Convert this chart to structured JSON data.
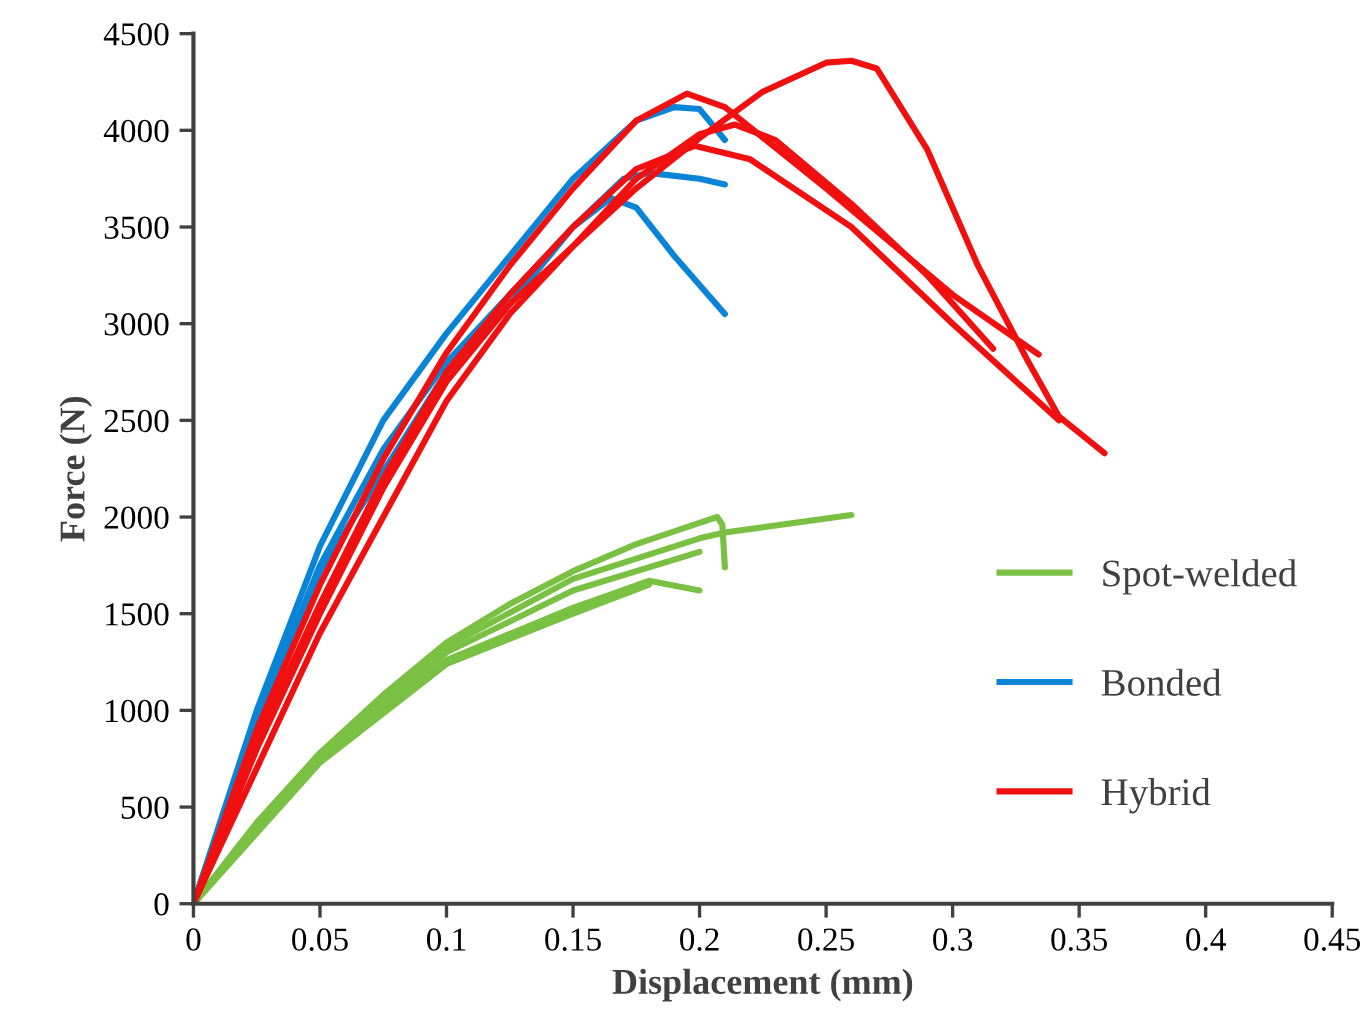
{
  "chart_data": {
    "type": "line",
    "xlabel": "Displacement (mm)",
    "ylabel": "Force (N)",
    "xlim": [
      0,
      0.45
    ],
    "xticks": [
      {
        "value": 0,
        "label": "0"
      },
      0.05,
      0.1,
      0.15,
      0.2,
      0.25,
      0.3,
      0.35,
      0.4,
      0.45
    ],
    "ylim": [
      0,
      4500
    ],
    "yticks": [
      0,
      500,
      1000,
      1500,
      2000,
      2500,
      3000,
      3500,
      4000,
      4500
    ],
    "grid": false,
    "legend": "right",
    "marker": "none",
    "line_style": "solid",
    "series": [
      {
        "name": "Spot-welded",
        "color": "#7ac143",
        "x": [
          0,
          0.025,
          0.05,
          0.075,
          0.1,
          0.125,
          0.15,
          0.175,
          0.2,
          0.207,
          0.209,
          0.21
        ],
        "values": [
          0,
          420,
          780,
          1080,
          1350,
          1550,
          1720,
          1860,
          1970,
          2000,
          1960,
          1740
        ]
      },
      {
        "color": "#7ac143",
        "x": [
          0,
          0.05,
          0.1,
          0.15,
          0.2,
          0.21,
          0.26
        ],
        "values": [
          0,
          770,
          1330,
          1680,
          1890,
          1920,
          2010
        ]
      },
      {
        "color": "#7ac143",
        "x": [
          0,
          0.05,
          0.1,
          0.15,
          0.2
        ],
        "values": [
          0,
          760,
          1300,
          1620,
          1820
        ]
      },
      {
        "color": "#7ac143",
        "x": [
          0,
          0.05,
          0.1,
          0.15,
          0.18,
          0.2
        ],
        "values": [
          0,
          740,
          1260,
          1530,
          1670,
          1620
        ]
      },
      {
        "color": "#7ac143",
        "x": [
          0,
          0.05,
          0.1,
          0.15,
          0.18
        ],
        "values": [
          0,
          730,
          1240,
          1500,
          1650
        ]
      },
      {
        "name": "Bonded",
        "color": "#0a84d6",
        "x": [
          0,
          0.025,
          0.05,
          0.075,
          0.1,
          0.125,
          0.15,
          0.175,
          0.19,
          0.2,
          0.21
        ],
        "values": [
          0,
          1000,
          1850,
          2500,
          2950,
          3350,
          3750,
          4050,
          4120,
          4110,
          3950
        ]
      },
      {
        "color": "#0a84d6",
        "x": [
          0,
          0.025,
          0.05,
          0.075,
          0.1,
          0.125,
          0.15,
          0.17,
          0.18,
          0.2,
          0.21
        ],
        "values": [
          0,
          950,
          1750,
          2350,
          2800,
          3150,
          3500,
          3750,
          3780,
          3750,
          3720
        ]
      },
      {
        "color": "#0a84d6",
        "x": [
          0,
          0.025,
          0.05,
          0.1,
          0.125,
          0.15,
          0.165,
          0.175,
          0.19,
          0.21
        ],
        "values": [
          0,
          950,
          1720,
          2750,
          3100,
          3500,
          3650,
          3600,
          3350,
          3050
        ]
      },
      {
        "name": "Hybrid",
        "color": "#f01010",
        "x": [
          0,
          0.025,
          0.05,
          0.075,
          0.1,
          0.125,
          0.15,
          0.175,
          0.2,
          0.225,
          0.25,
          0.26,
          0.27,
          0.29,
          0.31,
          0.33,
          0.342,
          0.36
        ],
        "values": [
          0,
          700,
          1400,
          2000,
          2600,
          3050,
          3400,
          3700,
          3960,
          4200,
          4350,
          4360,
          4320,
          3900,
          3300,
          2800,
          2520,
          2330
        ]
      },
      {
        "color": "#f01010",
        "x": [
          0,
          0.025,
          0.05,
          0.075,
          0.1,
          0.125,
          0.15,
          0.175,
          0.195,
          0.21,
          0.25,
          0.3,
          0.334
        ],
        "values": [
          0,
          900,
          1650,
          2300,
          2850,
          3300,
          3700,
          4050,
          4190,
          4120,
          3700,
          3150,
          2840
        ]
      },
      {
        "color": "#f01010",
        "x": [
          0,
          0.025,
          0.05,
          0.075,
          0.1,
          0.125,
          0.15,
          0.175,
          0.2,
          0.214,
          0.23,
          0.26,
          0.29,
          0.316
        ],
        "values": [
          0,
          800,
          1500,
          2150,
          2700,
          3100,
          3400,
          3750,
          3980,
          4030,
          3950,
          3620,
          3250,
          2870
        ]
      },
      {
        "color": "#f01010",
        "x": [
          0,
          0.025,
          0.05,
          0.075,
          0.1,
          0.125,
          0.15,
          0.175,
          0.198,
          0.22,
          0.26,
          0.3,
          0.342
        ],
        "values": [
          0,
          850,
          1550,
          2200,
          2750,
          3150,
          3500,
          3800,
          3920,
          3850,
          3500,
          3000,
          2500
        ]
      }
    ]
  }
}
